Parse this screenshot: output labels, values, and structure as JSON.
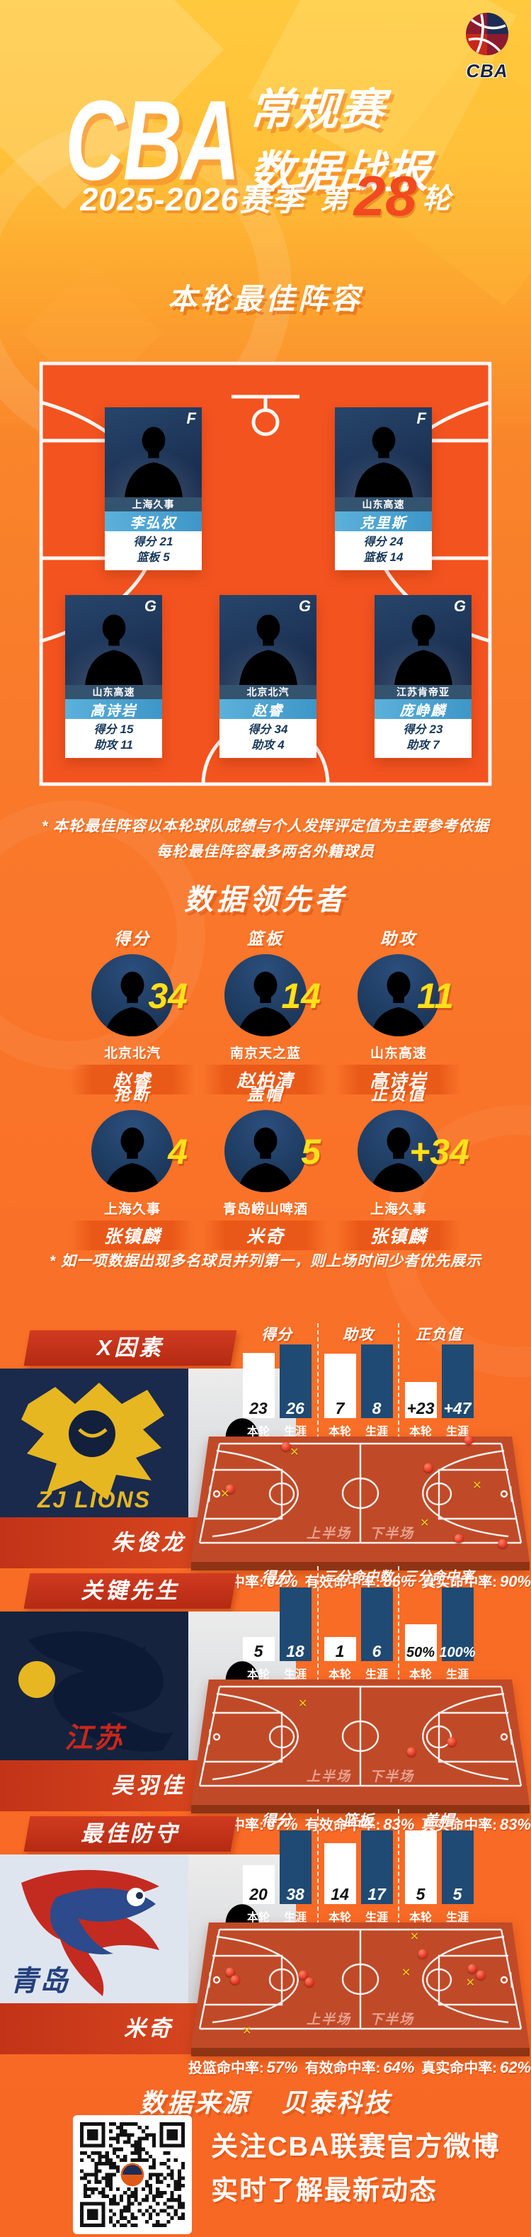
{
  "colors": {
    "bg_top": "#FFC93E",
    "bg_main": "#F97128",
    "court": "#F3531F",
    "mini_court": "#C04A28",
    "ribbon": "#C23318",
    "bar_navy": "#1F4A73",
    "number_yellow": "#FFE11A",
    "round_red": "#F2491F",
    "card_team_bar": "#33536F",
    "card_name_bar": "#4AA0CF"
  },
  "header": {
    "logo_label": "CBA",
    "title_main": "CBA",
    "title_sub1": "常规赛",
    "title_sub2": "数据战报",
    "season": "2025-2026赛季",
    "round_prefix": "第",
    "round_number": "28",
    "round_suffix": "轮"
  },
  "lineup": {
    "section_title": "本轮最佳阵容",
    "cards": [
      {
        "position": "F",
        "team": "上海久事",
        "name": "李弘权",
        "stats": [
          {
            "label": "得分",
            "value": "21"
          },
          {
            "label": "篮板",
            "value": "5"
          }
        ]
      },
      {
        "position": "F",
        "team": "山东高速",
        "name": "克里斯",
        "stats": [
          {
            "label": "得分",
            "value": "24"
          },
          {
            "label": "篮板",
            "value": "14"
          }
        ]
      },
      {
        "position": "G",
        "team": "山东高速",
        "name": "高诗岩",
        "stats": [
          {
            "label": "得分",
            "value": "15"
          },
          {
            "label": "助攻",
            "value": "11"
          }
        ]
      },
      {
        "position": "G",
        "team": "北京北汽",
        "name": "赵睿",
        "stats": [
          {
            "label": "得分",
            "value": "34"
          },
          {
            "label": "助攻",
            "value": "4"
          }
        ]
      },
      {
        "position": "G",
        "team": "江苏肯帝亚",
        "name": "庞峥麟",
        "stats": [
          {
            "label": "得分",
            "value": "23"
          },
          {
            "label": "助攻",
            "value": "7"
          }
        ]
      }
    ],
    "footnote_line1": "* 本轮最佳阵容以本轮球队成绩与个人发挥评定值为主要参考依据",
    "footnote_line2": "每轮最佳阵容最多两名外籍球员"
  },
  "leaders": {
    "section_title": "数据领先者",
    "items": [
      {
        "category": "得分",
        "value": "34",
        "team": "北京北汽",
        "name": "赵睿"
      },
      {
        "category": "篮板",
        "value": "14",
        "team": "南京天之蓝",
        "name": "赵柏清"
      },
      {
        "category": "助攻",
        "value": "11",
        "team": "山东高速",
        "name": "高诗岩"
      },
      {
        "category": "抢断",
        "value": "4",
        "team": "上海久事",
        "name": "张镇麟"
      },
      {
        "category": "盖帽",
        "value": "5",
        "team": "青岛崂山啤酒",
        "name": "米奇"
      },
      {
        "category": "正负值",
        "value": "+34",
        "team": "上海久事",
        "name": "张镇麟"
      }
    ],
    "footnote": "* 如一项数据出现多名球员并列第一，则上场时间少者优先展示"
  },
  "features": [
    {
      "section_title": "X因素",
      "logo_text": "ZJ LIONS",
      "name": "朱俊龙",
      "bar_labels": {
        "round": "本轮",
        "career": "生涯"
      },
      "stat_cols": [
        {
          "label": "得分",
          "round": 23,
          "career": 26,
          "round_display": "23",
          "career_display": "26"
        },
        {
          "label": "助攻",
          "round": 7,
          "career": 8,
          "round_display": "7",
          "career_display": "8"
        },
        {
          "label": "正负值",
          "round": 23,
          "career": 47,
          "round_display": "+23",
          "career_display": "+47"
        }
      ],
      "court": {
        "half1": "上半场",
        "half2": "下半场",
        "made": [
          [
            0.28,
            0.08
          ],
          [
            0.115,
            0.42
          ],
          [
            0.82,
            0.03
          ],
          [
            0.7,
            0.25
          ],
          [
            0.79,
            0.82
          ],
          [
            0.92,
            0.86
          ]
        ],
        "missed": [
          [
            0.305,
            0.13
          ],
          [
            0.1,
            0.47
          ],
          [
            0.845,
            0.4
          ],
          [
            0.69,
            0.7
          ]
        ]
      },
      "shooting": [
        {
          "label": "投篮命中率:",
          "value": "64%"
        },
        {
          "label": "有效命中率:",
          "value": "86%"
        },
        {
          "label": "真实命中率:",
          "value": "90%"
        }
      ]
    },
    {
      "section_title": "关键先生",
      "logo_text": "江苏",
      "name": "吴羽佳",
      "bar_labels": {
        "round": "本轮",
        "career": "生涯"
      },
      "stat_cols": [
        {
          "label": "得分",
          "round": 5,
          "career": 18,
          "round_display": "5",
          "career_display": "18"
        },
        {
          "label": "三分命中数",
          "round": 1,
          "career": 6,
          "round_display": "1",
          "career_display": "6"
        },
        {
          "label": "三分命中率",
          "round": 50,
          "career": 100,
          "round_display": "50%",
          "career_display": "100%"
        }
      ],
      "court": {
        "half1": "上半场",
        "half2": "下半场",
        "made": [
          [
            0.65,
            0.58
          ],
          [
            0.77,
            0.5
          ]
        ],
        "missed": [
          [
            0.33,
            0.2
          ]
        ]
      },
      "shooting": [
        {
          "label": "投篮命中率:",
          "value": "67%"
        },
        {
          "label": "有效命中率:",
          "value": "83%"
        },
        {
          "label": "真实命中率:",
          "value": "83%"
        }
      ]
    },
    {
      "section_title": "最佳防守",
      "logo_text": "青岛",
      "name": "米奇",
      "bar_labels": {
        "round": "本轮",
        "career": "生涯"
      },
      "stat_cols": [
        {
          "label": "得分",
          "round": 20,
          "career": 38,
          "round_display": "20",
          "career_display": "38"
        },
        {
          "label": "篮板",
          "round": 14,
          "career": 17,
          "round_display": "14",
          "career_display": "17"
        },
        {
          "label": "盖帽",
          "round": 5,
          "career": 5,
          "round_display": "5",
          "career_display": "5"
        }
      ],
      "court": {
        "half1": "上半场",
        "half2": "下半场",
        "made": [
          [
            0.115,
            0.4
          ],
          [
            0.13,
            0.46
          ],
          [
            0.33,
            0.42
          ],
          [
            0.35,
            0.48
          ],
          [
            0.685,
            0.25
          ],
          [
            0.83,
            0.37
          ],
          [
            0.855,
            0.42
          ]
        ],
        "missed": [
          [
            0.66,
            0.12
          ],
          [
            0.635,
            0.41
          ],
          [
            0.825,
            0.49
          ],
          [
            0.165,
            0.88
          ]
        ]
      },
      "shooting": [
        {
          "label": "投篮命中率:",
          "value": "57%"
        },
        {
          "label": "有效命中率:",
          "value": "64%"
        },
        {
          "label": "真实命中率:",
          "value": "62%"
        }
      ]
    }
  ],
  "footer": {
    "source_label": "数据来源",
    "source_value": "贝泰科技",
    "caption_line1": "关注CBA联赛官方微博",
    "caption_line2": "实时了解最新动态"
  },
  "chart_data": [
    {
      "type": "bar",
      "title": "X因素 朱俊龙",
      "categories": [
        "得分",
        "助攻",
        "正负值"
      ],
      "series": [
        {
          "name": "本轮",
          "values": [
            23,
            7,
            23
          ]
        },
        {
          "name": "生涯",
          "values": [
            26,
            8,
            47
          ]
        }
      ],
      "annotations": {
        "投篮命中率": "64%",
        "有效命中率": "86%",
        "真实命中率": "90%"
      }
    },
    {
      "type": "bar",
      "title": "关键先生 吴羽佳",
      "categories": [
        "得分",
        "三分命中数",
        "三分命中率(%)"
      ],
      "series": [
        {
          "name": "本轮",
          "values": [
            5,
            1,
            50
          ]
        },
        {
          "name": "生涯",
          "values": [
            18,
            6,
            100
          ]
        }
      ],
      "annotations": {
        "投篮命中率": "67%",
        "有效命中率": "83%",
        "真实命中率": "83%"
      }
    },
    {
      "type": "bar",
      "title": "最佳防守 米奇",
      "categories": [
        "得分",
        "篮板",
        "盖帽"
      ],
      "series": [
        {
          "name": "本轮",
          "values": [
            20,
            14,
            5
          ]
        },
        {
          "name": "生涯",
          "values": [
            38,
            17,
            5
          ]
        }
      ],
      "annotations": {
        "投篮命中率": "57%",
        "有效命中率": "64%",
        "真实命中率": "62%"
      }
    },
    {
      "type": "table",
      "title": "数据领先者",
      "columns": [
        "项目",
        "数值",
        "球队",
        "球员"
      ],
      "rows": [
        [
          "得分",
          "34",
          "北京北汽",
          "赵睿"
        ],
        [
          "篮板",
          "14",
          "南京天之蓝",
          "赵柏清"
        ],
        [
          "助攻",
          "11",
          "山东高速",
          "高诗岩"
        ],
        [
          "抢断",
          "4",
          "上海久事",
          "张镇麟"
        ],
        [
          "盖帽",
          "5",
          "青岛崂山啤酒",
          "米奇"
        ],
        [
          "正负值",
          "+34",
          "上海久事",
          "张镇麟"
        ]
      ]
    }
  ]
}
